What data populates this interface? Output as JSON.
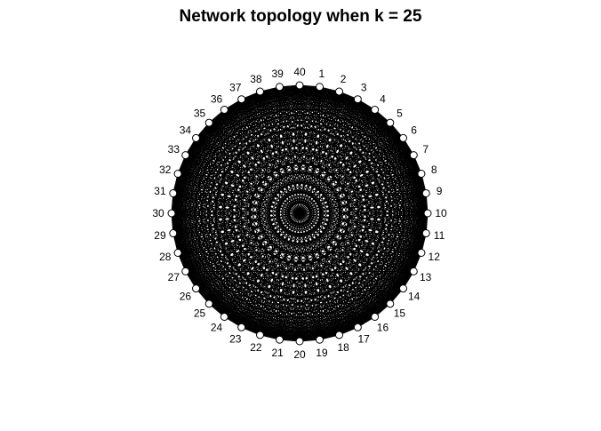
{
  "title": "Network topology when k = 25",
  "network": {
    "layout": "circle",
    "node_count": 40,
    "k": 25,
    "node_labels": [
      "1",
      "2",
      "3",
      "4",
      "5",
      "6",
      "7",
      "8",
      "9",
      "10",
      "11",
      "12",
      "13",
      "14",
      "15",
      "16",
      "17",
      "18",
      "19",
      "20",
      "21",
      "22",
      "23",
      "24",
      "25",
      "26",
      "27",
      "28",
      "29",
      "30",
      "31",
      "32",
      "33",
      "34",
      "35",
      "36",
      "37",
      "38",
      "39",
      "40"
    ],
    "edge_color": "#000000",
    "node_color": "#ffffff",
    "label_color": "#000000"
  }
}
